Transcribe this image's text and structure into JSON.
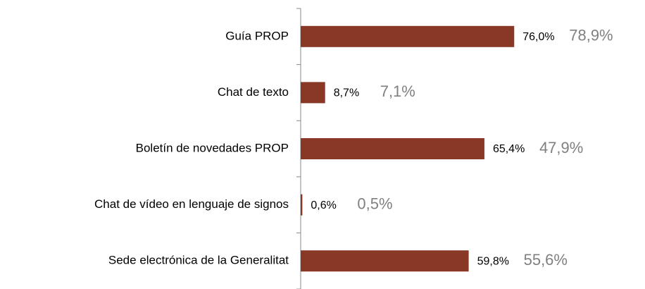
{
  "chart_data": {
    "type": "bar",
    "orientation": "horizontal",
    "categories": [
      "Guía PROP",
      "Chat de texto",
      "Boletín de novedades PROP",
      "Chat de vídeo en lenguaje de signos",
      "Sede electrónica de la Generalitat"
    ],
    "series": [
      {
        "color": "#893826",
        "values": [
          76.0,
          8.7,
          65.4,
          0.6,
          59.8
        ],
        "value_labels": [
          "76,0%",
          "8,7%",
          "65,4%",
          "0,6%",
          "59,8%"
        ],
        "label_color": "#000000"
      },
      {
        "color": "#808080",
        "values": [
          78.9,
          7.1,
          47.9,
          0.5,
          55.6
        ],
        "value_labels": [
          "78,9%",
          "7,1%",
          "47,9%",
          "0,5%",
          "55,6%"
        ],
        "label_color": "#808080",
        "labels_only": true
      }
    ],
    "xlim": [
      0,
      100
    ]
  }
}
